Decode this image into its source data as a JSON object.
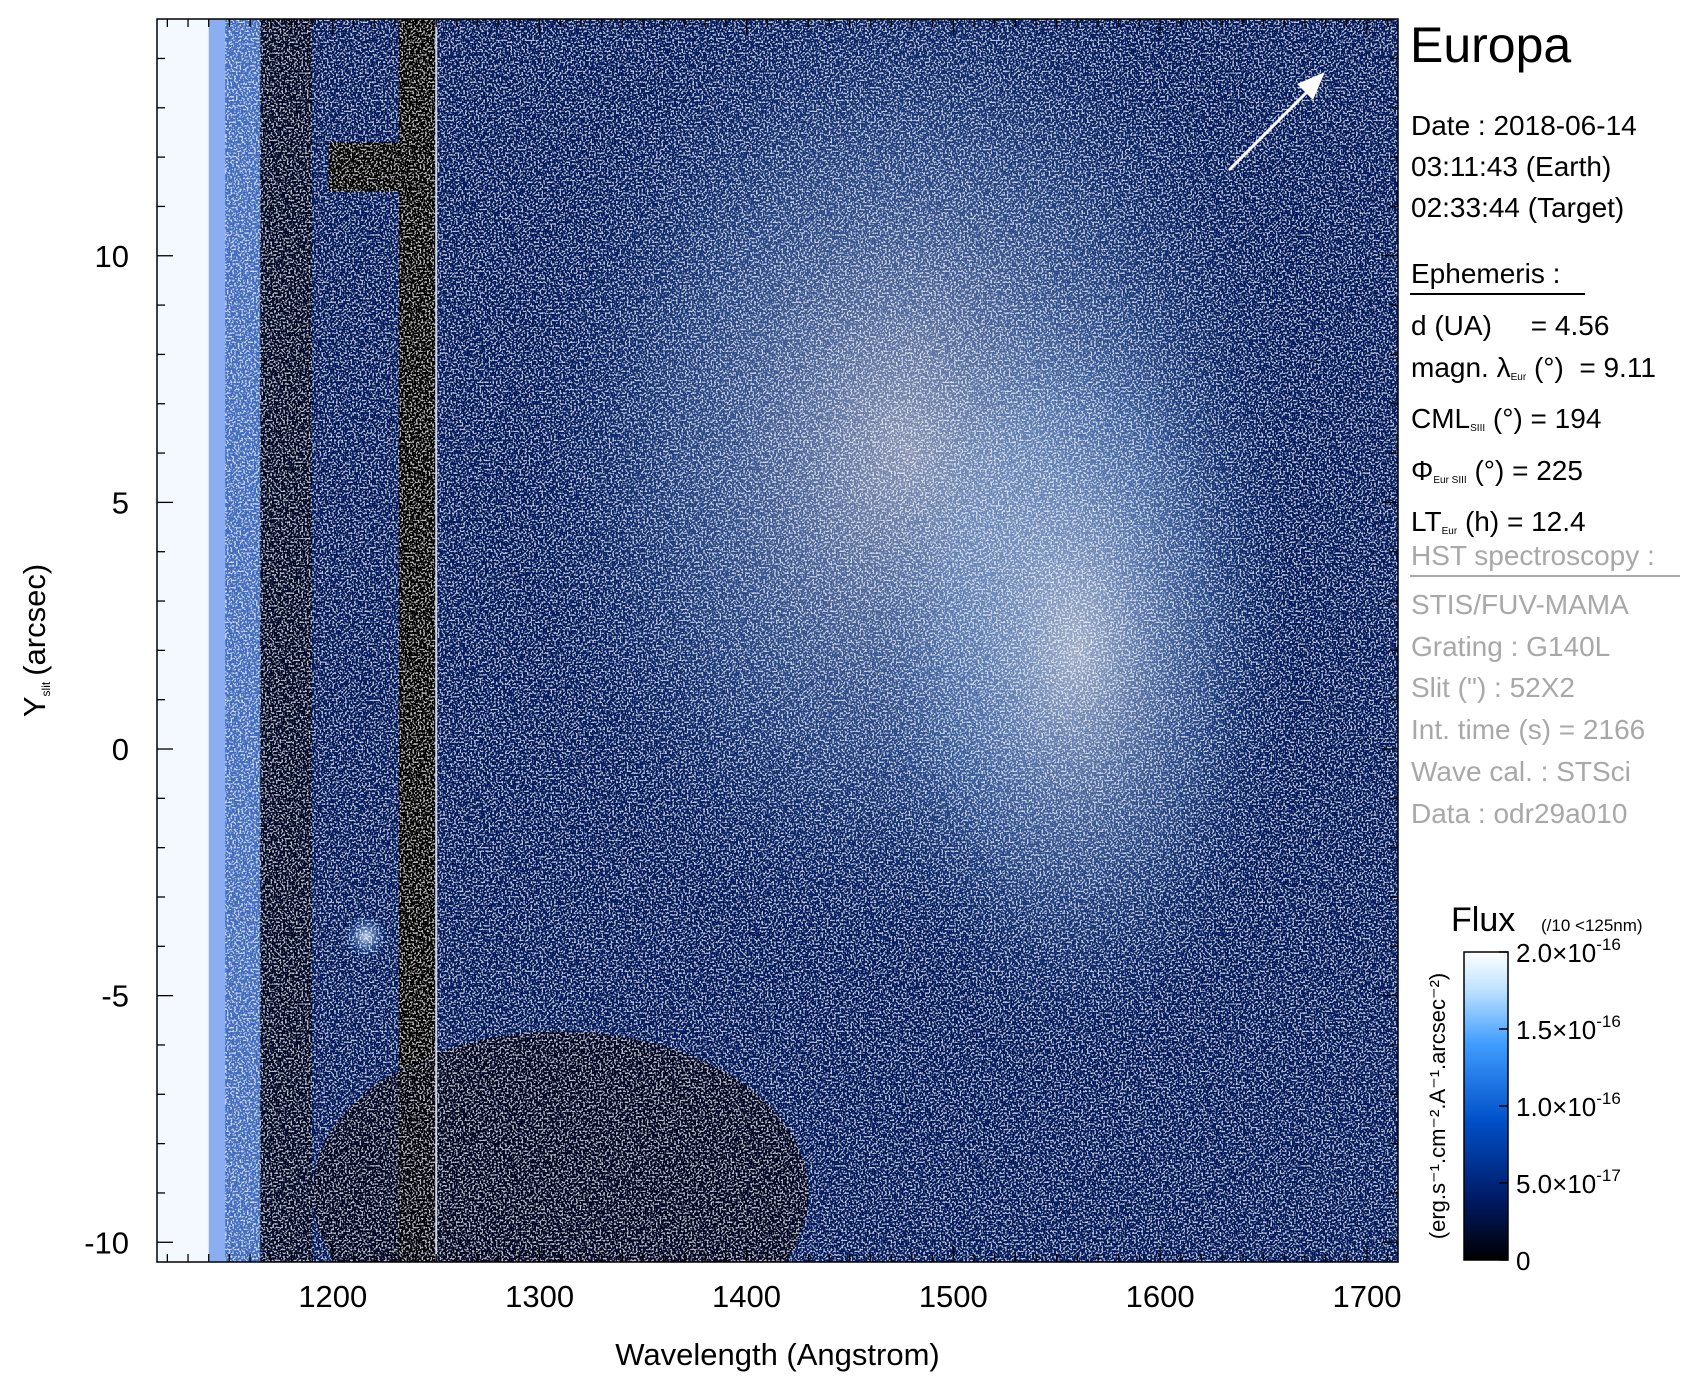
{
  "chart_data": {
    "type": "heatmap",
    "title": "Europa",
    "xlabel": "Wavelength (Angstrom)",
    "ylabel": "Y",
    "ylabel_sub": "slit",
    "ylabel_unit": "(arcsec)",
    "xlim": [
      1115,
      1715
    ],
    "ylim": [
      -10.4,
      14.8
    ],
    "xticks": [
      1200,
      1300,
      1400,
      1500,
      1600,
      1700
    ],
    "yticks": [
      -10,
      -5,
      0,
      5,
      10
    ],
    "xtick_labels": [
      "1200",
      "1300",
      "1400",
      "1500",
      "1600",
      "1700"
    ],
    "ytick_labels": [
      "-10",
      "-5",
      "0",
      "5",
      "10"
    ],
    "colormap": [
      "#000000",
      "#001a66",
      "#0050c8",
      "#3f9cff",
      "#bfe3ff",
      "#ffffff"
    ],
    "colorbar": {
      "title": "Flux",
      "note": "(/10 <125nm)",
      "unit_label": "(erg.s⁻¹.cm⁻².A⁻¹.arcsec⁻²)",
      "range": [
        0,
        2e-16
      ],
      "ticks": [
        0,
        5e-17,
        1e-16,
        1.5e-16,
        2e-16
      ],
      "tick_labels": [
        {
          "mant": "0",
          "exp": ""
        },
        {
          "mant": "5.0×10",
          "exp": "-17"
        },
        {
          "mant": "1.0×10",
          "exp": "-16"
        },
        {
          "mant": "1.5×10",
          "exp": "-16"
        },
        {
          "mant": "2.0×10",
          "exp": "-16"
        }
      ]
    },
    "features": {
      "slit_edge_wavelength": 1250,
      "geocoronal_line_wavelength": 1216
    }
  },
  "info": {
    "date_lines": [
      "Date : 2018-06-14",
      "03:11:43 (Earth)",
      "02:33:44 (Target)"
    ],
    "ephemeris_header": "Ephemeris :",
    "ephemeris": [
      {
        "main": "d (UA)",
        "sub": "",
        "rest": "     = 4.56"
      },
      {
        "main": "magn. λ",
        "sub": "Eur",
        "rest": " (°)  = 9.11"
      },
      {
        "main": "CML",
        "sub": "SIII",
        "rest": " (°) = 194"
      },
      {
        "main": "Φ",
        "sub": "Eur SIII",
        "rest": " (°) = 225"
      },
      {
        "main": "LT",
        "sub": "Eur",
        "rest": " (h) = 12.4"
      }
    ],
    "hst_header": "HST spectroscopy :",
    "hst": [
      "STIS/FUV-MAMA",
      "Grating : G140L",
      "Slit (\") : 52X2",
      "Int. time (s) = 2166",
      "Wave cal. : STSci",
      "Data : odr29a010"
    ]
  }
}
